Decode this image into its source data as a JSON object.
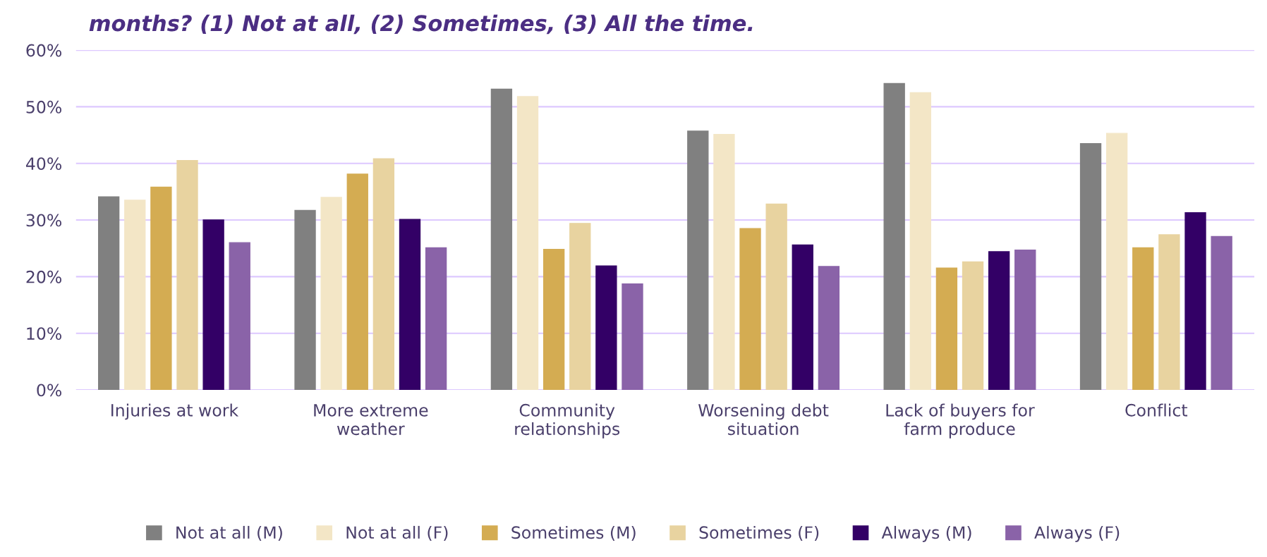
{
  "chart_data": {
    "type": "bar",
    "title": "months? (1) Not at all, (2) Sometimes, (3) All the time.",
    "categories": [
      "Injuries at work",
      "More extreme\nweather",
      "Community\nrelationships",
      "Worsening debt\nsituation",
      "Lack of buyers for\nfarm produce",
      "Conflict"
    ],
    "series": [
      {
        "name": "Not at all (M)",
        "color": "#808080",
        "values": [
          34.1,
          31.7,
          53.1,
          45.7,
          54.1,
          43.5
        ]
      },
      {
        "name": "Not at all (F)",
        "color": "#f3e6c6",
        "values": [
          33.5,
          34.0,
          51.8,
          45.1,
          52.5,
          45.3
        ]
      },
      {
        "name": "Sometimes (M)",
        "color": "#d4ac52",
        "values": [
          35.8,
          38.1,
          24.8,
          28.5,
          21.5,
          25.1
        ]
      },
      {
        "name": "Sometimes (F)",
        "color": "#e8d3a0",
        "values": [
          40.5,
          40.8,
          29.4,
          32.8,
          22.6,
          27.4
        ]
      },
      {
        "name": "Always (M)",
        "color": "#330066",
        "values": [
          30.0,
          30.1,
          21.9,
          25.6,
          24.4,
          31.3
        ]
      },
      {
        "name": "Always (F)",
        "color": "#8a63a8",
        "values": [
          26.0,
          25.1,
          18.7,
          21.8,
          24.7,
          27.1
        ]
      }
    ],
    "ylim": [
      0,
      60
    ],
    "yticks": [
      {
        "value": 0,
        "label": "0%"
      },
      {
        "value": 10,
        "label": "10%"
      },
      {
        "value": 20,
        "label": "20%"
      },
      {
        "value": 30,
        "label": "30%"
      },
      {
        "value": 40,
        "label": "40%"
      },
      {
        "value": 50,
        "label": "50%"
      },
      {
        "value": 60,
        "label": "60%"
      }
    ],
    "grid": "y",
    "legend": "bottom"
  }
}
